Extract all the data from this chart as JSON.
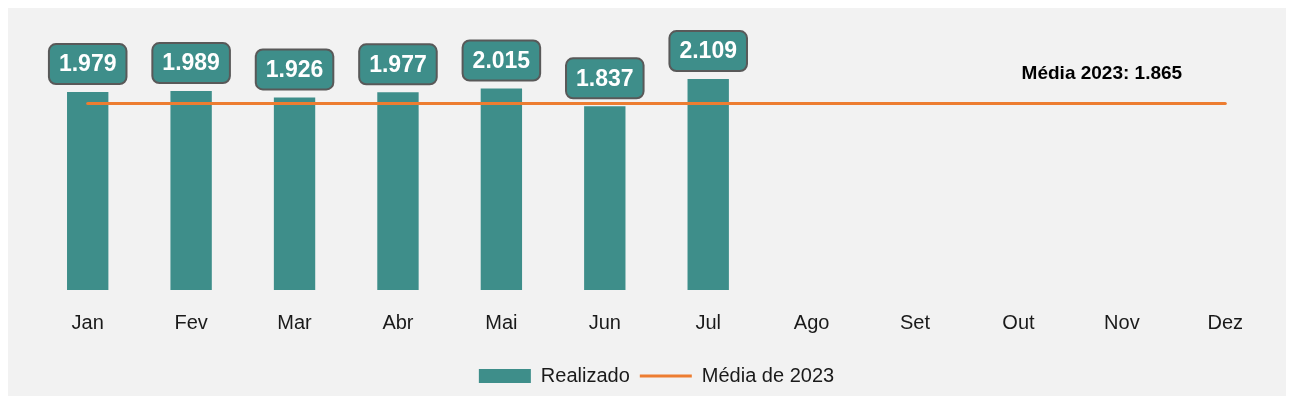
{
  "chart_data": {
    "type": "bar",
    "categories": [
      "Jan",
      "Fev",
      "Mar",
      "Abr",
      "Mai",
      "Jun",
      "Jul",
      "Ago",
      "Set",
      "Out",
      "Nov",
      "Dez"
    ],
    "series": [
      {
        "name": "Realizado",
        "color": "#3e8e8a",
        "values": [
          1979,
          1989,
          1926,
          1977,
          2015,
          1837,
          2109,
          null,
          null,
          null,
          null,
          null
        ],
        "value_labels": [
          "1.979",
          "1.989",
          "1.926",
          "1.977",
          "2.015",
          "1.837",
          "2.109",
          null,
          null,
          null,
          null,
          null
        ]
      },
      {
        "name": "Média de 2023",
        "type": "line",
        "color": "#ed7d31",
        "values": [
          1865,
          1865,
          1865,
          1865,
          1865,
          1865,
          1865,
          1865,
          1865,
          1865,
          1865,
          1865
        ]
      }
    ],
    "tick_labels": "x",
    "legend": "bottom",
    "annotations": [
      {
        "text": "Média 2023: 1.865",
        "x": "Nov",
        "y": 1865
      }
    ]
  }
}
